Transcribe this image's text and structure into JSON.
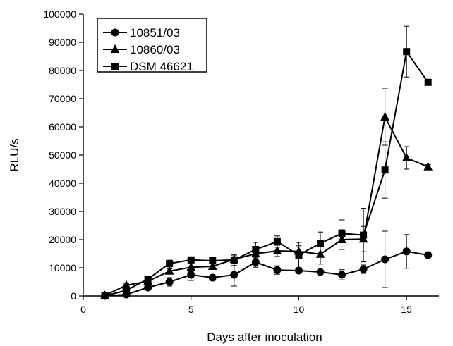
{
  "chart_data": {
    "type": "line",
    "title": "",
    "xlabel": "Days after inoculation",
    "ylabel": "RLU/s",
    "xlim": [
      0,
      16.5
    ],
    "ylim": [
      0,
      100000
    ],
    "xticks": [
      0,
      5,
      10,
      15
    ],
    "yticks": [
      0,
      10000,
      20000,
      30000,
      40000,
      50000,
      60000,
      70000,
      80000,
      90000,
      100000
    ],
    "grid": false,
    "legend_position": "top-left",
    "series": [
      {
        "name": "10851/03",
        "marker": "circle",
        "x": [
          1,
          2,
          3,
          4,
          5,
          6,
          7,
          8,
          9,
          10,
          11,
          12,
          13,
          14,
          15,
          16
        ],
        "y": [
          0,
          500,
          3000,
          5000,
          7500,
          6500,
          7500,
          12000,
          9200,
          9000,
          8500,
          7500,
          9500,
          13000,
          15800,
          14500
        ],
        "err": [
          0,
          300,
          800,
          1500,
          2000,
          1000,
          4000,
          1800,
          1500,
          800,
          600,
          1800,
          1500,
          10000,
          6000,
          800
        ]
      },
      {
        "name": "10860/03",
        "marker": "triangle",
        "x": [
          1,
          2,
          3,
          4,
          5,
          6,
          7,
          8,
          9,
          10,
          11,
          12,
          13,
          14,
          15,
          16
        ],
        "y": [
          200,
          3800,
          5200,
          8800,
          10200,
          10500,
          13000,
          15000,
          16000,
          15800,
          14800,
          20000,
          20200,
          63500,
          49000,
          45800
        ],
        "err": [
          0,
          500,
          800,
          800,
          1500,
          1000,
          1500,
          1500,
          2000,
          2000,
          3500,
          3500,
          4500,
          10000,
          4000,
          800
        ]
      },
      {
        "name": "DSM 46621",
        "marker": "square",
        "x": [
          1,
          2,
          3,
          4,
          5,
          6,
          7,
          8,
          9,
          10,
          11,
          12,
          13,
          14,
          15,
          16
        ],
        "y": [
          0,
          2000,
          6000,
          11500,
          12800,
          12500,
          12800,
          16500,
          19300,
          14500,
          18700,
          22200,
          21600,
          44700,
          86700,
          75800
        ],
        "err": [
          0,
          500,
          800,
          1200,
          1000,
          1000,
          2000,
          2500,
          2000,
          4500,
          4000,
          4800,
          9500,
          10000,
          9000,
          800
        ]
      }
    ]
  }
}
